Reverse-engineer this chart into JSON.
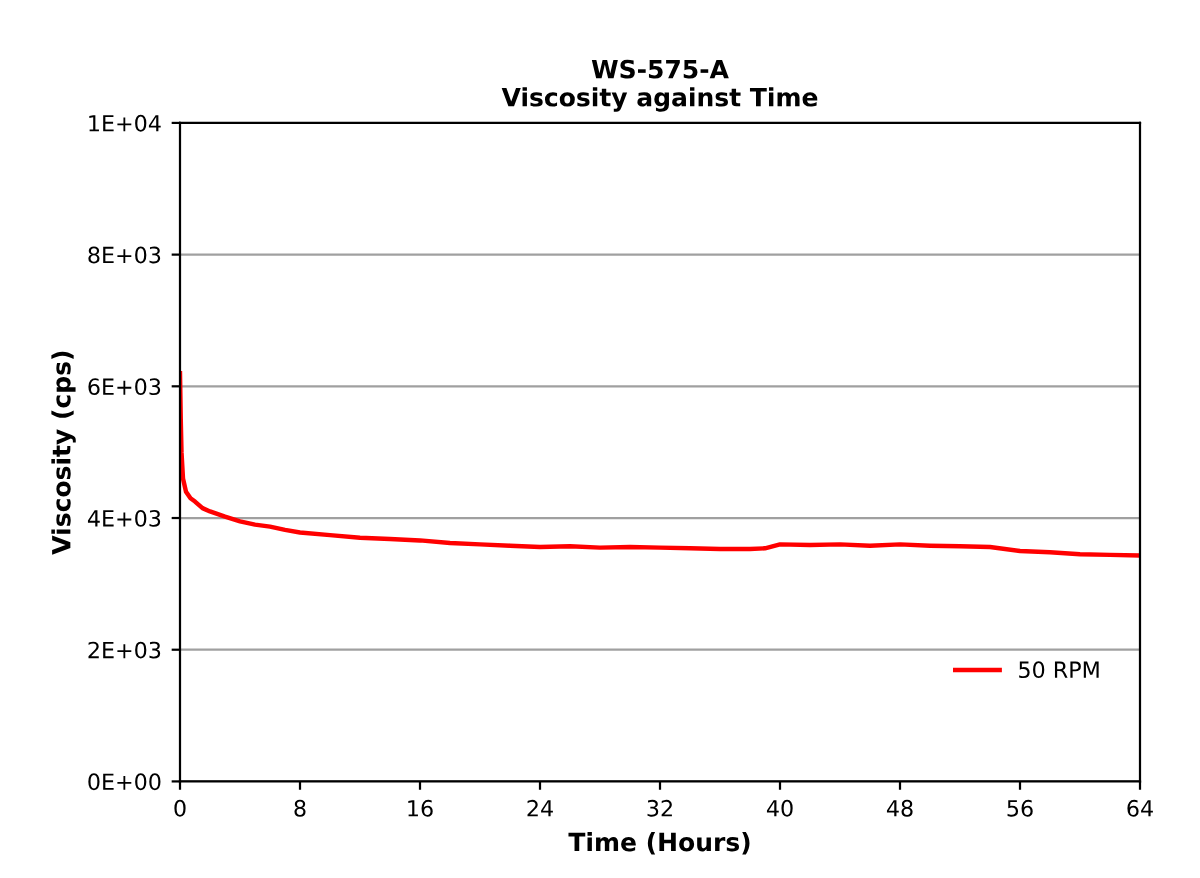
{
  "chart_data": {
    "type": "line",
    "title": "WS-575-A\nViscosity against Time",
    "xlabel": "Time (Hours)",
    "ylabel": "Viscosity (cps)",
    "xlim": [
      0,
      64
    ],
    "xticks": [
      0,
      8,
      16,
      24,
      32,
      40,
      48,
      56,
      64
    ],
    "ylim": [
      0,
      10000
    ],
    "yticks": [
      {
        "value": 0,
        "label": "0E+00"
      },
      {
        "value": 2000,
        "label": "2E+03"
      },
      {
        "value": 4000,
        "label": "4E+03"
      },
      {
        "value": 6000,
        "label": "6E+03"
      },
      {
        "value": 8000,
        "label": "8E+03"
      },
      {
        "value": 10000,
        "label": "1E+04"
      }
    ],
    "grid": "y",
    "legend": "bottom right",
    "marker": "none",
    "line_style": "solid",
    "series": [
      {
        "name": "50 RPM",
        "color": "#ff0000",
        "x": [
          0,
          0.05,
          0.1,
          0.2,
          0.4,
          0.7,
          1,
          1.5,
          2,
          3,
          4,
          5,
          6,
          7,
          8,
          10,
          12,
          14,
          16,
          18,
          20,
          22,
          24,
          26,
          28,
          30,
          32,
          34,
          36,
          38,
          39,
          40,
          42,
          44,
          46,
          48,
          50,
          52,
          54,
          56,
          58,
          60,
          62,
          64
        ],
        "values": [
          6200,
          5500,
          5000,
          4600,
          4400,
          4300,
          4250,
          4150,
          4100,
          4020,
          3950,
          3900,
          3870,
          3820,
          3780,
          3740,
          3700,
          3680,
          3660,
          3620,
          3600,
          3580,
          3560,
          3570,
          3550,
          3560,
          3550,
          3540,
          3530,
          3530,
          3540,
          3600,
          3590,
          3600,
          3580,
          3600,
          3580,
          3570,
          3560,
          3500,
          3480,
          3450,
          3440,
          3430
        ]
      }
    ]
  }
}
